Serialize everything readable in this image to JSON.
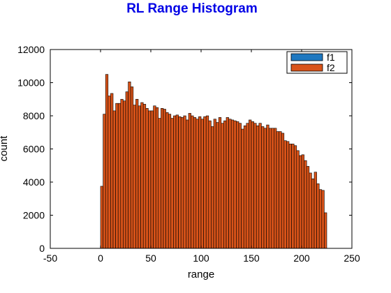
{
  "chart_data": {
    "type": "bar",
    "title": "RL Range Histogram",
    "xlabel": "range",
    "ylabel": "count",
    "xlim": [
      -50,
      250
    ],
    "ylim": [
      0,
      12000
    ],
    "xticks": [
      "-50",
      "0",
      "50",
      "100",
      "150",
      "200",
      "250"
    ],
    "yticks": [
      "0",
      "2000",
      "4000",
      "6000",
      "8000",
      "10000",
      "12000"
    ],
    "bin_start": 0,
    "bin_width": 2.5,
    "legend": {
      "position": "top-right",
      "entries": [
        "f1",
        "f2"
      ]
    },
    "series": [
      {
        "name": "f1",
        "color": "#1f78c0",
        "values": []
      },
      {
        "name": "f2",
        "color": "#d95319",
        "values": [
          3750,
          8100,
          10500,
          9200,
          9350,
          8300,
          8750,
          8750,
          9000,
          8900,
          9450,
          10050,
          9750,
          8650,
          9000,
          8600,
          8800,
          8700,
          8450,
          8300,
          8300,
          8600,
          8500,
          7850,
          8450,
          8400,
          8200,
          8100,
          7850,
          8000,
          8050,
          7950,
          7900,
          8000,
          7750,
          8150,
          8000,
          7900,
          7800,
          7950,
          7800,
          7950,
          8000,
          7700,
          7350,
          7800,
          7600,
          7900,
          7550,
          7700,
          7900,
          7800,
          7750,
          7700,
          7650,
          7550,
          7200,
          7400,
          7550,
          7750,
          7650,
          7550,
          7400,
          7550,
          7350,
          7250,
          7450,
          7250,
          7250,
          7250,
          7050,
          7050,
          6950,
          6500,
          6450,
          6300,
          6300,
          6200,
          5900,
          5600,
          5650,
          5300,
          4950,
          4550,
          4200,
          4600,
          3900,
          3550,
          3500,
          2150
        ]
      }
    ]
  }
}
